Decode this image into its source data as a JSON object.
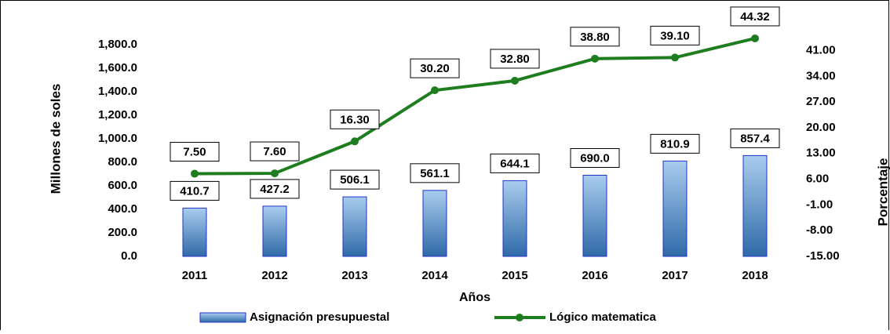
{
  "chart_data": {
    "type": "bar-line",
    "x_label": "Años",
    "y_label": "Millones de soles",
    "y2_label": "Porcentaje",
    "categories": [
      "2011",
      "2012",
      "2013",
      "2014",
      "2015",
      "2016",
      "2017",
      "2018"
    ],
    "series": [
      {
        "name": "Asignación presupuestal",
        "type": "bar",
        "color": "#4f86c6",
        "values": [
          410.7,
          427.2,
          506.1,
          561.1,
          644.1,
          690.0,
          810.9,
          857.4
        ],
        "value_labels": [
          "410.7",
          "427.2",
          "506.1",
          "561.1",
          "644.1",
          "690.0",
          "810.9",
          "857.4"
        ]
      },
      {
        "name": "Lógico matematica",
        "type": "line",
        "axis": "y2",
        "color": "#1e7d1e",
        "values": [
          7.5,
          7.6,
          16.3,
          30.2,
          32.8,
          38.8,
          39.1,
          44.32
        ],
        "value_labels": [
          "7.50",
          "7.60",
          "16.30",
          "30.20",
          "32.80",
          "38.80",
          "39.10",
          "44.32"
        ]
      }
    ],
    "ylim": [
      0,
      2000
    ],
    "yticks": [
      {
        "value": 0,
        "label": "0.0"
      },
      {
        "value": 200,
        "label": "200.0"
      },
      {
        "value": 400,
        "label": "400.0"
      },
      {
        "value": 600,
        "label": "600.0"
      },
      {
        "value": 800,
        "label": "800.0"
      },
      {
        "value": 1000,
        "label": "1,000.0"
      },
      {
        "value": 1200,
        "label": "1,200.0"
      },
      {
        "value": 1400,
        "label": "1,400.0"
      },
      {
        "value": 1600,
        "label": "1,600.0"
      },
      {
        "value": 1800,
        "label": "1,800.0"
      }
    ],
    "y2lim": [
      -15,
      49
    ],
    "y2ticks": [
      {
        "value": -15,
        "label": "-15.00"
      },
      {
        "value": -8,
        "label": "-8.00"
      },
      {
        "value": -1,
        "label": "-1.00"
      },
      {
        "value": 6,
        "label": "6.00"
      },
      {
        "value": 13,
        "label": "13.00"
      },
      {
        "value": 20,
        "label": "20.00"
      },
      {
        "value": 27,
        "label": "27.00"
      },
      {
        "value": 34,
        "label": "34.00"
      },
      {
        "value": 41,
        "label": "41.00"
      }
    ]
  }
}
